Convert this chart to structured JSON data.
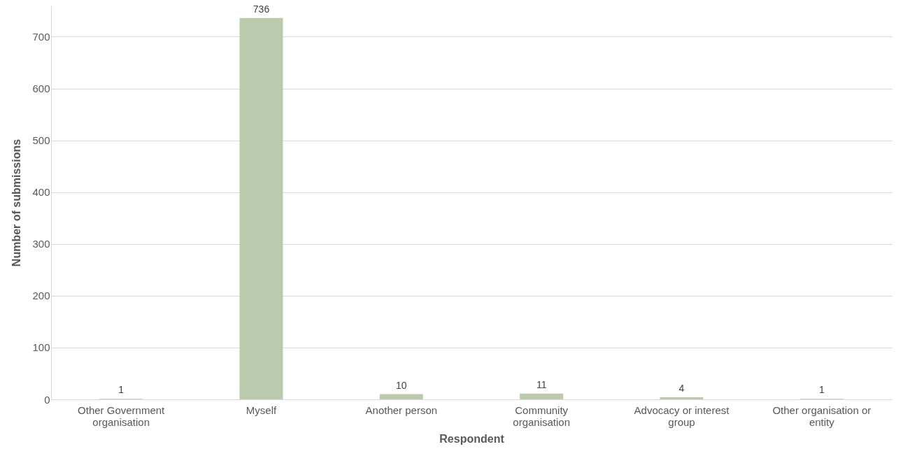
{
  "chart_data": {
    "type": "bar",
    "xlabel": "Respondent",
    "ylabel": "Number of submissions",
    "categories": [
      "Other Government organisation",
      "Myself",
      "Another person",
      "Community organisation",
      "Advocacy or interest group",
      "Other organisation or entity"
    ],
    "values": [
      1,
      736,
      10,
      11,
      4,
      1
    ],
    "color": "#bbc9ad",
    "ylim": [
      0,
      760
    ],
    "yticks": [
      0,
      100,
      200,
      300,
      400,
      500,
      600,
      700
    ],
    "grid": "y",
    "data_labels": true
  }
}
